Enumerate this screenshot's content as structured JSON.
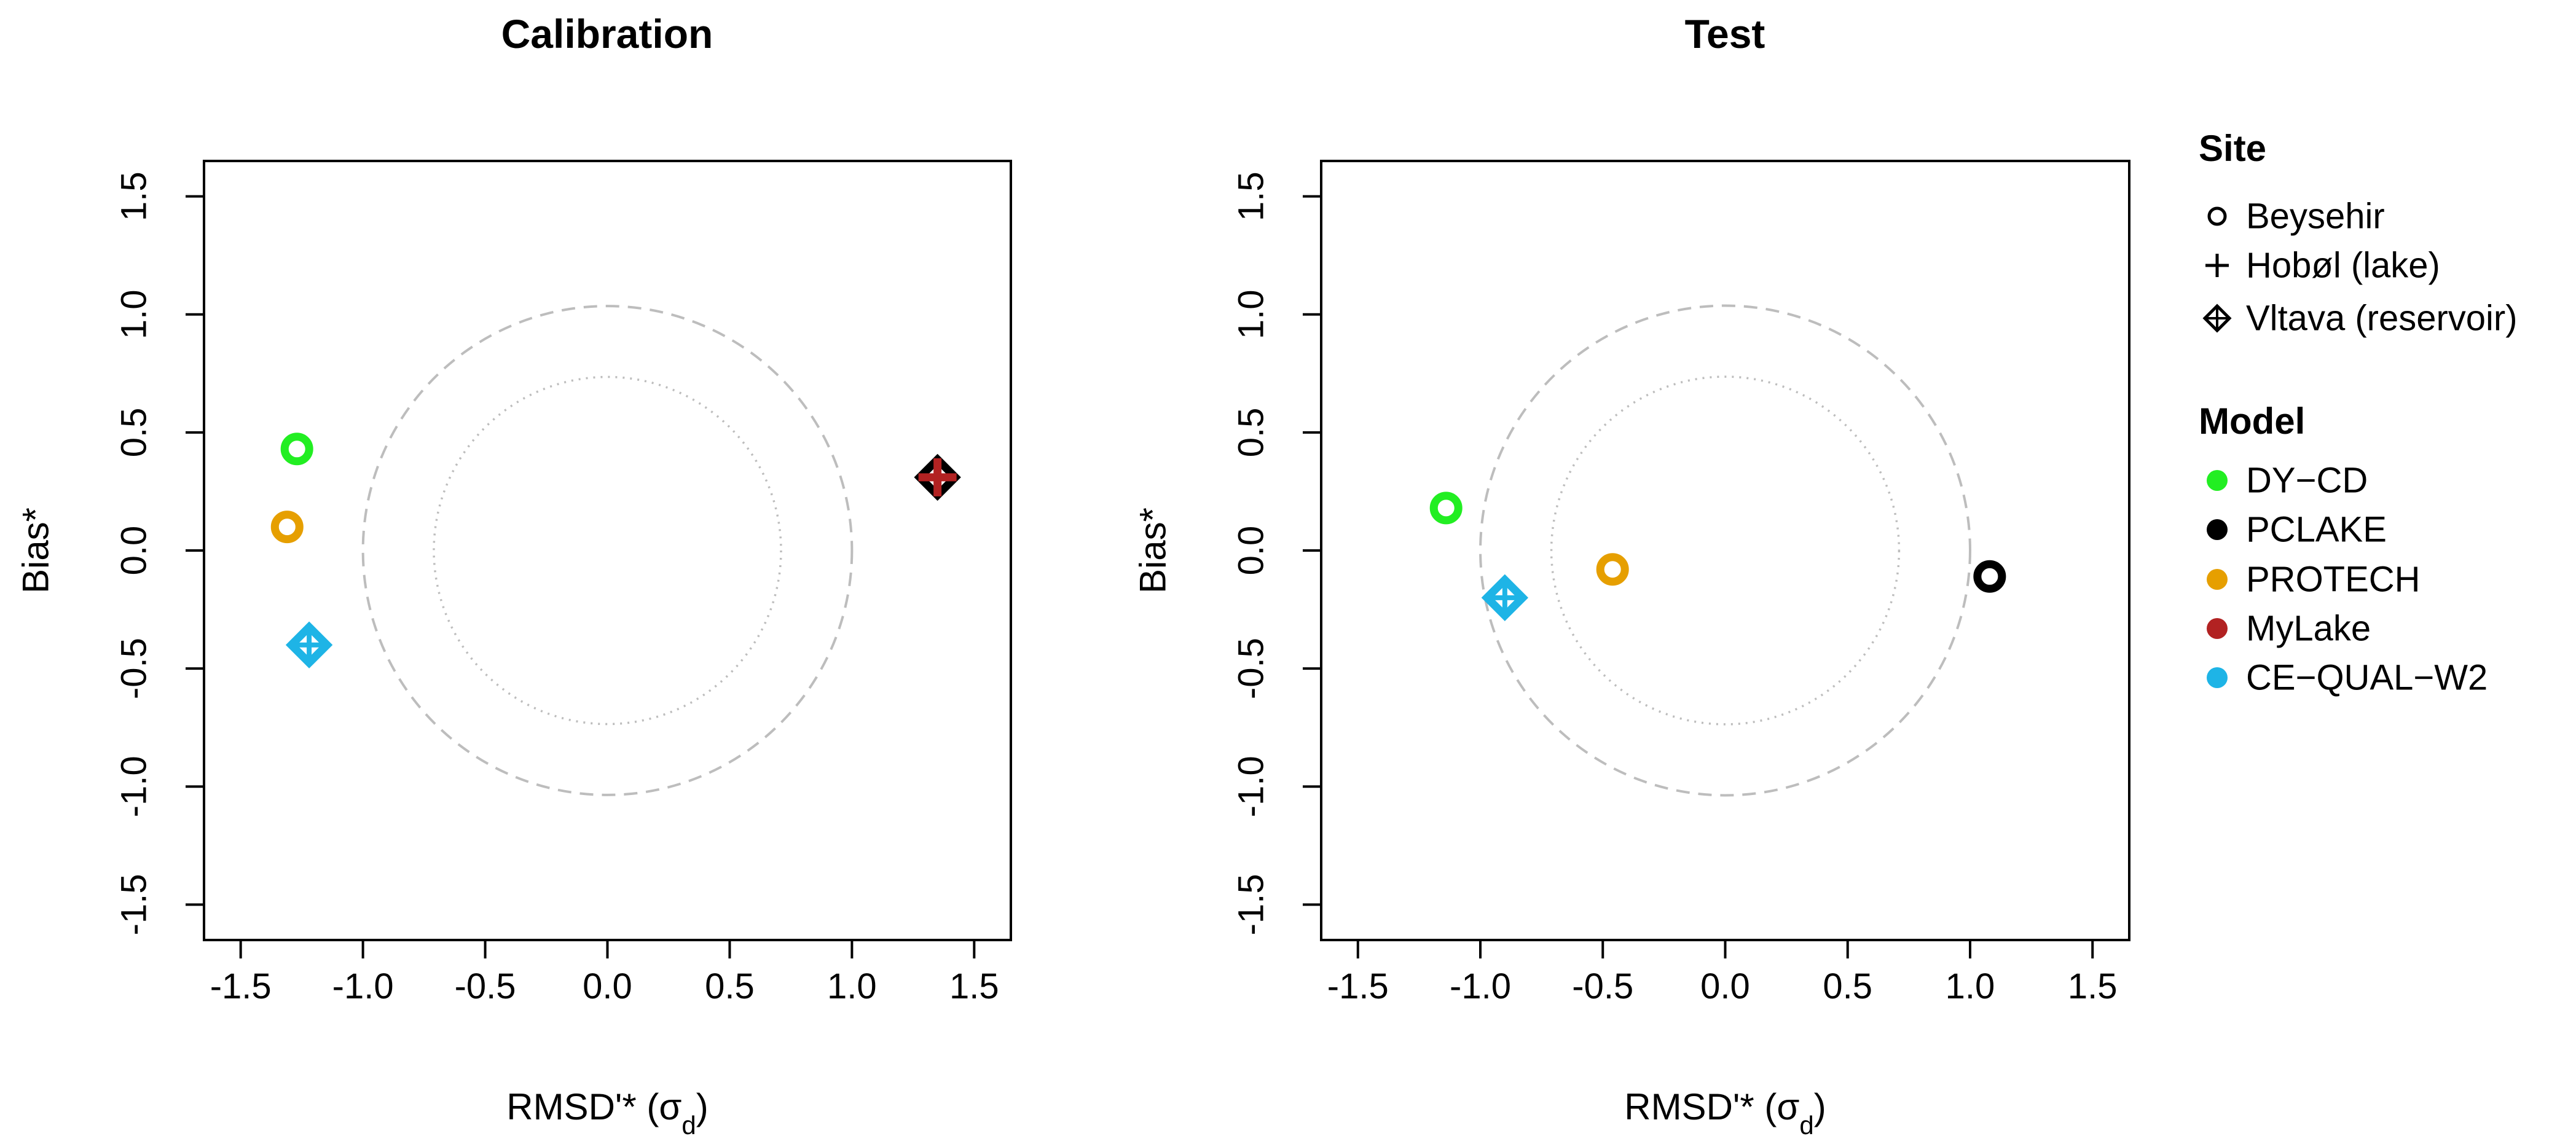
{
  "chart_data": [
    {
      "type": "scatter",
      "title": "Calibration",
      "xlabel": "RMSD'* (σ",
      "xlabel_sub": "d",
      "xlabel_end": ")",
      "ylabel": "Bias*",
      "xlim": [
        -1.65,
        1.65
      ],
      "ylim": [
        -1.65,
        1.65
      ],
      "x_ticks": [
        -1.5,
        -1.0,
        -0.5,
        0.0,
        0.5,
        1.0,
        1.5
      ],
      "x_tick_labels": [
        "-1.5",
        "-1.0",
        "-0.5",
        "0.0",
        "0.5",
        "1.0",
        "1.5"
      ],
      "y_ticks": [
        -1.5,
        -1.0,
        -0.5,
        0.0,
        0.5,
        1.0,
        1.5
      ],
      "y_tick_labels": [
        "-1.5",
        "-1.0",
        "-0.5",
        "0.0",
        "0.5",
        "1.0",
        "1.5"
      ],
      "reference_circles": [
        {
          "radius": 1.0,
          "style": "dashed"
        },
        {
          "radius": 0.71,
          "style": "dotted"
        }
      ],
      "points": [
        {
          "model": "DY-CD",
          "site": "Beysehir",
          "x": -1.27,
          "y": 0.43
        },
        {
          "model": "PROTECH",
          "site": "Beysehir",
          "x": -1.31,
          "y": 0.1
        },
        {
          "model": "CE-QUAL-W2",
          "site": "Vltava (reservoir)",
          "x": -1.22,
          "y": -0.4
        },
        {
          "model": "PCLAKE",
          "site": "Vltava (reservoir)",
          "x": 1.35,
          "y": 0.31
        },
        {
          "model": "MyLake",
          "site": "Hobøl (lake)",
          "x": 1.35,
          "y": 0.31
        }
      ]
    },
    {
      "type": "scatter",
      "title": "Test",
      "xlabel": "RMSD'* (σ",
      "xlabel_sub": "d",
      "xlabel_end": ")",
      "ylabel": "Bias*",
      "xlim": [
        -1.65,
        1.65
      ],
      "ylim": [
        -1.65,
        1.65
      ],
      "x_ticks": [
        -1.5,
        -1.0,
        -0.5,
        0.0,
        0.5,
        1.0,
        1.5
      ],
      "x_tick_labels": [
        "-1.5",
        "-1.0",
        "-0.5",
        "0.0",
        "0.5",
        "1.0",
        "1.5"
      ],
      "y_ticks": [
        -1.5,
        -1.0,
        -0.5,
        0.0,
        0.5,
        1.0,
        1.5
      ],
      "y_tick_labels": [
        "-1.5",
        "-1.0",
        "-0.5",
        "0.0",
        "0.5",
        "1.0",
        "1.5"
      ],
      "reference_circles": [
        {
          "radius": 1.0,
          "style": "dashed"
        },
        {
          "radius": 0.71,
          "style": "dotted"
        }
      ],
      "points": [
        {
          "model": "DY-CD",
          "site": "Beysehir",
          "x": -1.14,
          "y": 0.18
        },
        {
          "model": "PROTECH",
          "site": "Beysehir",
          "x": -0.46,
          "y": -0.08
        },
        {
          "model": "CE-QUAL-W2",
          "site": "Vltava (reservoir)",
          "x": -0.9,
          "y": -0.2
        },
        {
          "model": "PCLAKE",
          "site": "Beysehir",
          "x": 1.08,
          "y": -0.11
        }
      ]
    }
  ],
  "legend": {
    "site_title": "Site",
    "site_entries": [
      {
        "label": "Beysehir",
        "marker": "circle"
      },
      {
        "label": "Hobøl (lake)",
        "marker": "plus"
      },
      {
        "label": "Vltava (reservoir)",
        "marker": "diamond-plus"
      }
    ],
    "model_title": "Model",
    "model_entries": [
      {
        "label": "DY−CD",
        "color": "#22ee22"
      },
      {
        "label": "PCLAKE",
        "color": "#000000"
      },
      {
        "label": "PROTECH",
        "color": "#e69f00"
      },
      {
        "label": "MyLake",
        "color": "#b22222"
      },
      {
        "label": "CE−QUAL−W2",
        "color": "#1eb4e6"
      }
    ]
  },
  "colors": {
    "DY-CD": "#22ee22",
    "PCLAKE": "#000000",
    "PROTECH": "#e69f00",
    "MyLake": "#b22222",
    "CE-QUAL-W2": "#1eb4e6",
    "reference": "#bdbdbd",
    "axis": "#000000"
  }
}
